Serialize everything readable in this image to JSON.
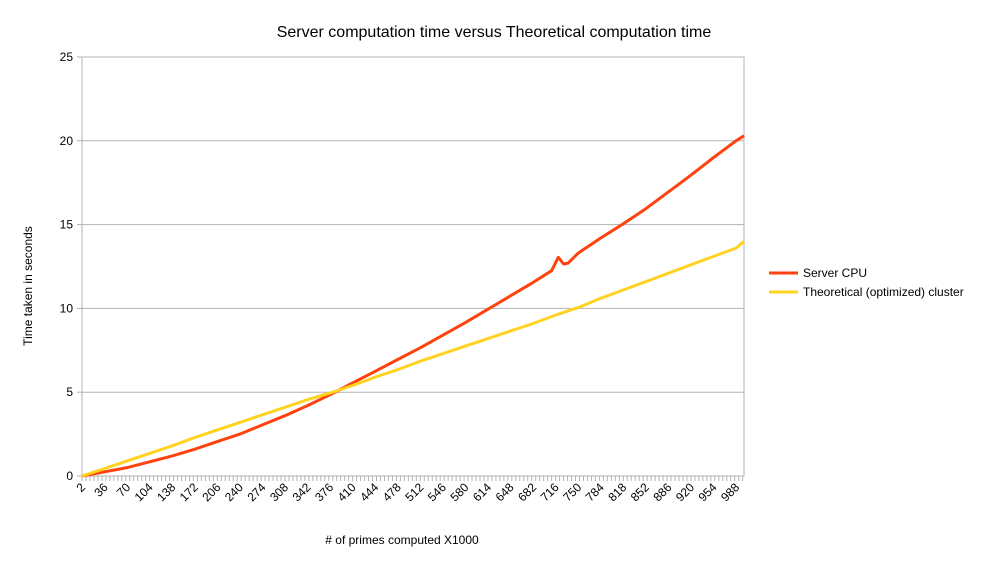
{
  "chart_data": {
    "type": "line",
    "title": "Server computation time versus Theoretical computation time",
    "xlabel": "# of primes computed X1000",
    "ylabel": "Time taken in seconds",
    "xlim": [
      2,
      1000
    ],
    "ylim": [
      0,
      25
    ],
    "yticks": [
      0,
      5,
      10,
      15,
      20,
      25
    ],
    "xtick_labels": [
      "2",
      "36",
      "70",
      "104",
      "138",
      "172",
      "206",
      "240",
      "274",
      "308",
      "342",
      "376",
      "410",
      "444",
      "478",
      "512",
      "546",
      "580",
      "614",
      "648",
      "682",
      "716",
      "750",
      "784",
      "818",
      "852",
      "886",
      "920",
      "954",
      "988"
    ],
    "grid": "horizontal",
    "legend_position": "right",
    "series": [
      {
        "name": "Server CPU",
        "color": "#ff420e",
        "x": [
          2,
          36,
          70,
          104,
          138,
          172,
          206,
          240,
          274,
          308,
          342,
          376,
          410,
          444,
          478,
          512,
          546,
          580,
          614,
          648,
          682,
          710,
          720,
          728,
          735,
          750,
          784,
          818,
          852,
          886,
          920,
          954,
          988,
          1000
        ],
        "y": [
          0.0,
          0.25,
          0.5,
          0.85,
          1.2,
          1.6,
          2.05,
          2.5,
          3.05,
          3.6,
          4.2,
          4.85,
          5.55,
          6.25,
          6.95,
          7.65,
          8.4,
          9.15,
          9.95,
          10.75,
          11.55,
          12.25,
          13.05,
          12.65,
          12.7,
          13.3,
          14.2,
          15.05,
          15.95,
          16.95,
          17.95,
          19.0,
          20.0,
          20.3
        ]
      },
      {
        "name": "Theoretical (optimized) cluster",
        "color": "#ffd320",
        "x": [
          2,
          36,
          70,
          104,
          138,
          172,
          206,
          240,
          274,
          308,
          342,
          376,
          410,
          444,
          478,
          512,
          546,
          580,
          614,
          648,
          682,
          716,
          750,
          784,
          818,
          852,
          886,
          920,
          954,
          988,
          1000
        ],
        "y": [
          0.0,
          0.45,
          0.9,
          1.35,
          1.8,
          2.3,
          2.75,
          3.2,
          3.65,
          4.1,
          4.55,
          4.95,
          5.4,
          5.9,
          6.35,
          6.85,
          7.3,
          7.75,
          8.2,
          8.65,
          9.1,
          9.6,
          10.05,
          10.6,
          11.1,
          11.6,
          12.1,
          12.6,
          13.1,
          13.6,
          14.0
        ]
      }
    ]
  }
}
